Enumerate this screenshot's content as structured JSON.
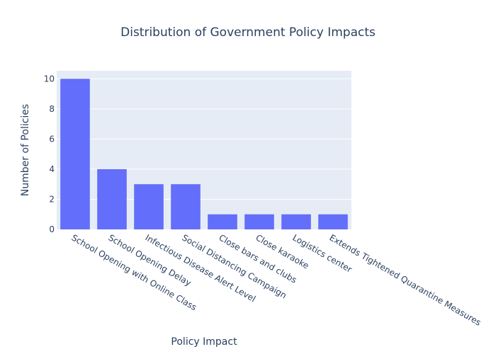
{
  "chart_data": {
    "type": "bar",
    "title": "Distribution of Government Policy Impacts",
    "xlabel": "Policy Impact",
    "ylabel": "Number of Policies",
    "categories": [
      "School Opening with Online Class",
      "School Opening Delay",
      "Infectious Disease Alert Level",
      "Social Distancing Campaign",
      "Close bars and clubs",
      "Close karaoke",
      "Logistics center",
      "Extends Tightened Quarantine Measures"
    ],
    "values": [
      10,
      4,
      3,
      3,
      1,
      1,
      1,
      1
    ],
    "ylim": [
      0,
      10.53
    ],
    "yticks": [
      0,
      2,
      4,
      6,
      8,
      10
    ],
    "grid": true,
    "colors": {
      "bar": "#636efa",
      "plot_bg": "#e5ecf6",
      "grid": "#ffffff",
      "text": "#2a3f5f"
    }
  }
}
